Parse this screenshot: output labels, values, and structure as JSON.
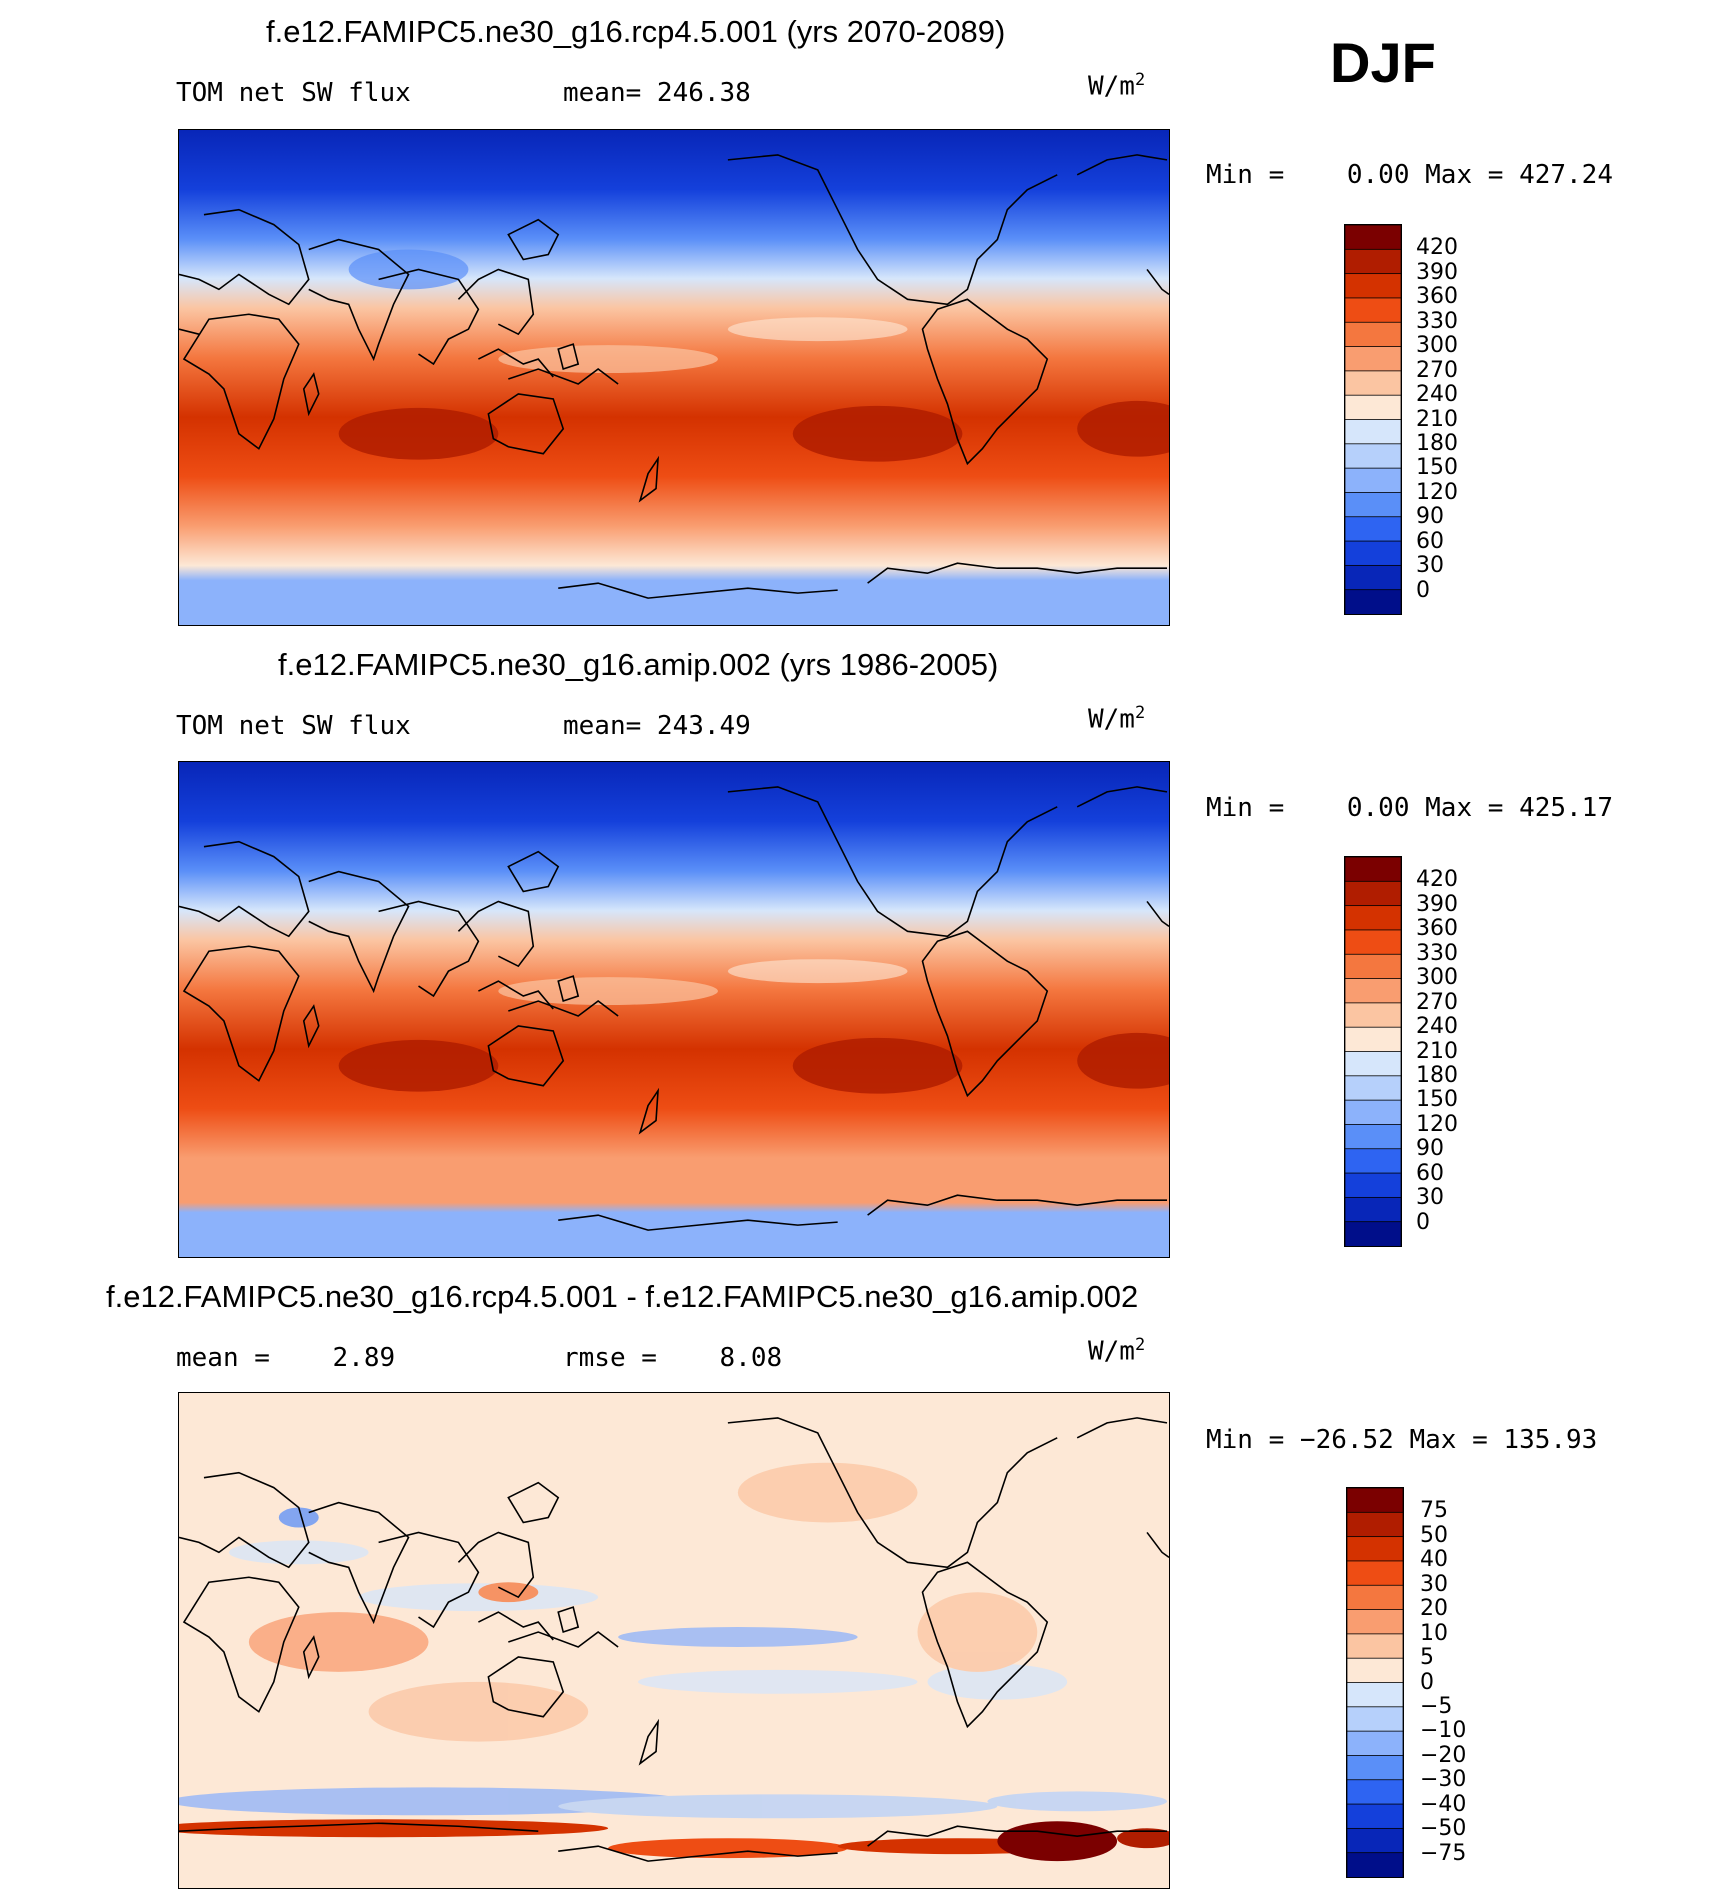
{
  "season": "DJF",
  "units": {
    "base": "W/m",
    "exp": "2"
  },
  "panels": [
    {
      "title": "f.e12.FAMIPC5.ne30_g16.rcp4.5.001 (yrs 2070-2089)",
      "left_label": "TOM net SW flux",
      "stat_label": "mean= 246.38",
      "minmax": "Min =    0.00 Max = 427.24",
      "cbar_labels": [
        "420",
        "390",
        "360",
        "330",
        "300",
        "270",
        "240",
        "210",
        "180",
        "150",
        "120",
        "90",
        "60",
        "30",
        "0"
      ],
      "cbar_colors": [
        "#7b0000",
        "#b01d00",
        "#d43200",
        "#ee4d14",
        "#f4773f",
        "#f99d70",
        "#fbc5a2",
        "#fde8d6",
        "#d6e6fb",
        "#b6d0fb",
        "#8cb2fb",
        "#5a8ff8",
        "#2e64f2",
        "#1440db",
        "#0826b8",
        "#000e8a"
      ],
      "stats_value": {
        "mean": 246.38,
        "min": 0.0,
        "max": 427.24
      }
    },
    {
      "title": "f.e12.FAMIPC5.ne30_g16.amip.002 (yrs 1986-2005)",
      "left_label": "TOM net SW flux",
      "stat_label": "mean= 243.49",
      "minmax": "Min =    0.00 Max = 425.17",
      "cbar_labels": [
        "420",
        "390",
        "360",
        "330",
        "300",
        "270",
        "240",
        "210",
        "180",
        "150",
        "120",
        "90",
        "60",
        "30",
        "0"
      ],
      "cbar_colors": [
        "#7b0000",
        "#b01d00",
        "#d43200",
        "#ee4d14",
        "#f4773f",
        "#f99d70",
        "#fbc5a2",
        "#fde8d6",
        "#d6e6fb",
        "#b6d0fb",
        "#8cb2fb",
        "#5a8ff8",
        "#2e64f2",
        "#1440db",
        "#0826b8",
        "#000e8a"
      ],
      "stats_value": {
        "mean": 243.49,
        "min": 0.0,
        "max": 425.17
      }
    },
    {
      "title": "f.e12.FAMIPC5.ne30_g16.rcp4.5.001 - f.e12.FAMIPC5.ne30_g16.amip.002",
      "left_label": "mean =    2.89",
      "stat_label": "rmse =    8.08",
      "minmax": "Min = −26.52 Max = 135.93",
      "cbar_labels": [
        "75",
        "50",
        "40",
        "30",
        "20",
        "10",
        "5",
        "0",
        "−5",
        "−10",
        "−20",
        "−30",
        "−40",
        "−50",
        "−75"
      ],
      "cbar_colors": [
        "#7b0000",
        "#b01d00",
        "#d43200",
        "#ee4d14",
        "#f4773f",
        "#f99d70",
        "#fbc5a2",
        "#fde8d6",
        "#d6e6fb",
        "#b6d0fb",
        "#8cb2fb",
        "#5a8ff8",
        "#2e64f2",
        "#1440db",
        "#0826b8",
        "#000e8a"
      ],
      "stats_value": {
        "mean": 2.89,
        "rmse": 8.08,
        "min": -26.52,
        "max": 135.93
      }
    }
  ]
}
